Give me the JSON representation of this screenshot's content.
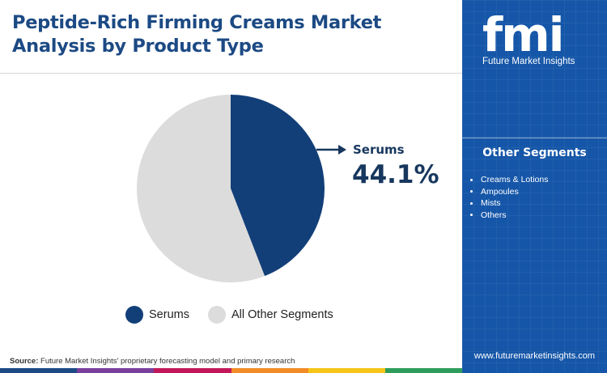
{
  "title": "Peptide-Rich Firming Creams Market Analysis by Product Type",
  "chart_data": {
    "type": "pie",
    "slices": [
      {
        "label": "Serums",
        "value": 44.1,
        "color": "#123f78"
      },
      {
        "label": "All Other Segments",
        "value": 55.9,
        "color": "#dcdcdc"
      }
    ],
    "callout": {
      "label": "Serums",
      "value": "44.1%"
    },
    "legend": [
      "Serums",
      "All Other Segments"
    ],
    "legend_position": "bottom"
  },
  "side_panel": {
    "logo_text": "fmi",
    "logo_caption": "Future Market Insights",
    "segments_heading": "Other Segments",
    "segments": [
      "Creams & Lotions",
      "Ampoules",
      "Mists",
      "Others"
    ],
    "website": "www.futuremarketinsights.com",
    "background_color": "#1556a8"
  },
  "footer": {
    "source_label": "Source:",
    "source_text": "Future Market Insights' proprietary forecasting model and primary research",
    "bar_colors": [
      "#1c4a84",
      "#7a3e9d",
      "#c2185b",
      "#f28c28",
      "#f5c518",
      "#2e9d5b"
    ]
  }
}
